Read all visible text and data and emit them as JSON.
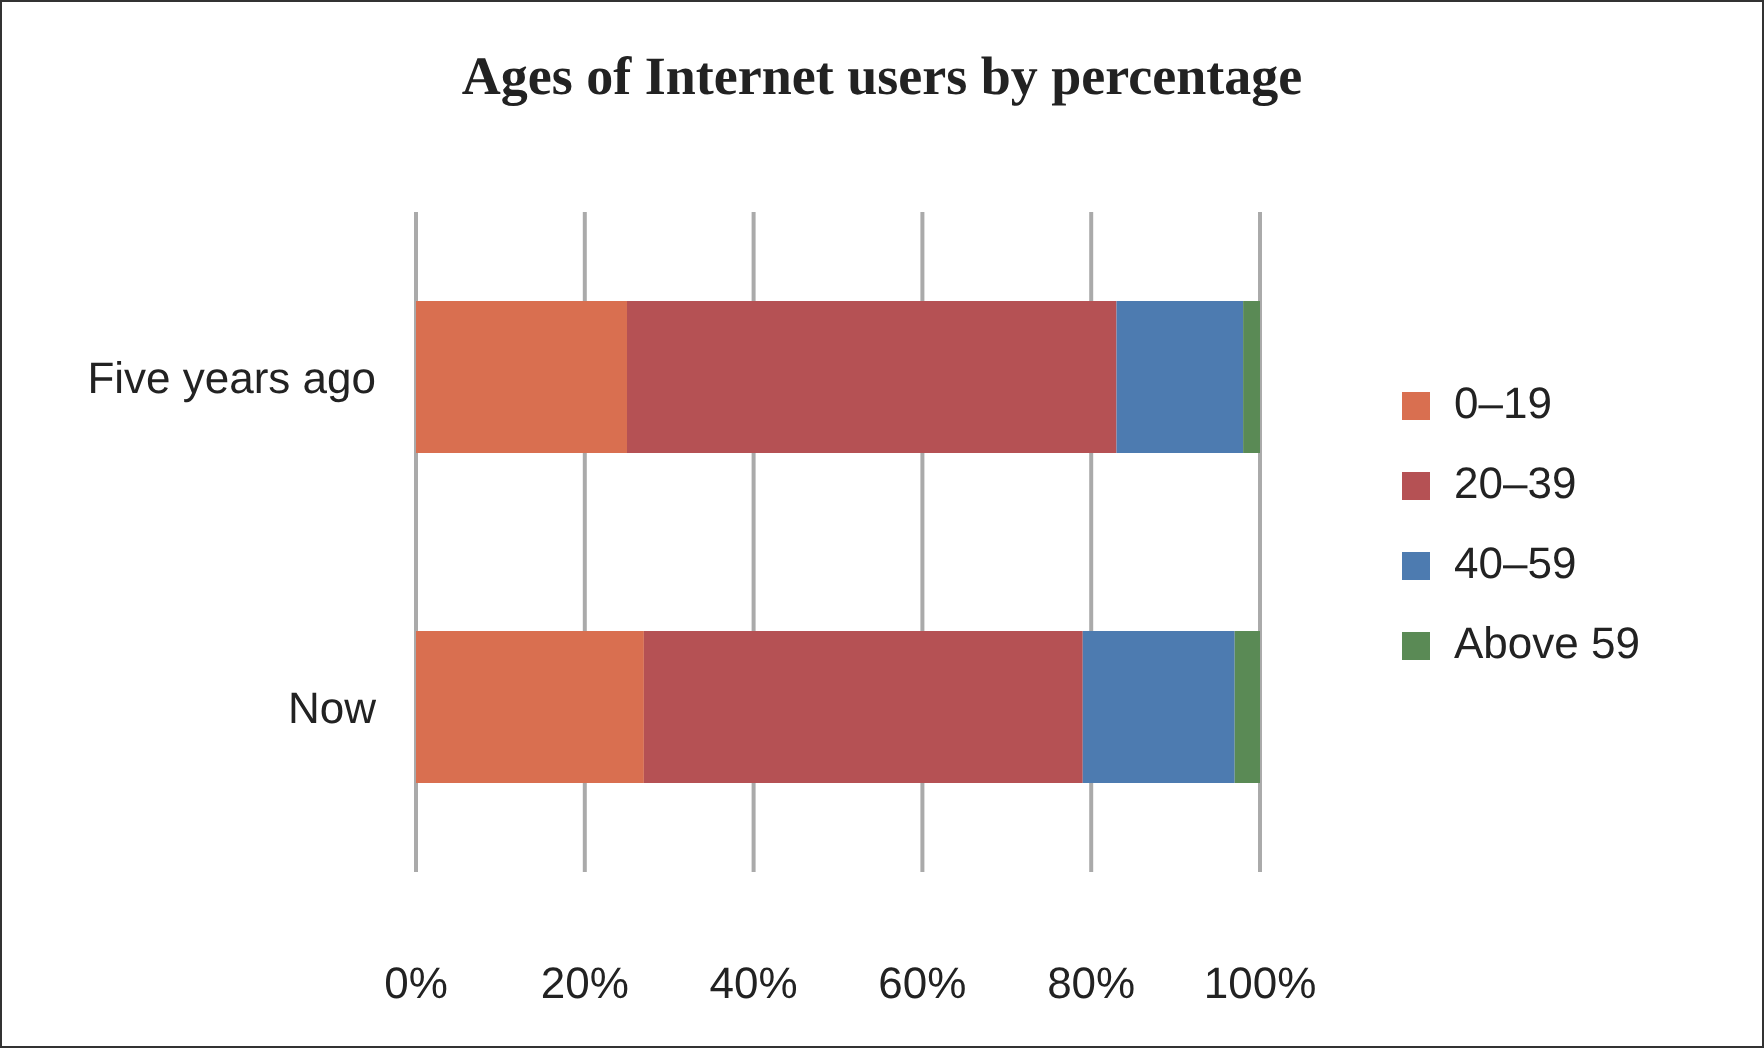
{
  "chart_data": {
    "type": "bar",
    "orientation": "horizontal",
    "stacked": true,
    "title": "Ages of Internet users by percentage",
    "categories": [
      "Five years ago",
      "Now"
    ],
    "series": [
      {
        "name": "0–19",
        "color": "#d96f50",
        "values": [
          25,
          27
        ]
      },
      {
        "name": "20–39",
        "color": "#b55154",
        "values": [
          58,
          52
        ]
      },
      {
        "name": "40–59",
        "color": "#4d7bb0",
        "values": [
          15,
          18
        ]
      },
      {
        "name": "Above 59",
        "color": "#5a8a55",
        "values": [
          2,
          3
        ]
      }
    ],
    "xlim": [
      0,
      100
    ],
    "xticks": [
      {
        "value": 0,
        "label": "0%"
      },
      {
        "value": 20,
        "label": "20%"
      },
      {
        "value": 40,
        "label": "40%"
      },
      {
        "value": 60,
        "label": "60%"
      },
      {
        "value": 80,
        "label": "80%"
      },
      {
        "value": 100,
        "label": "100%"
      }
    ],
    "grid": "x",
    "legend": "right"
  }
}
